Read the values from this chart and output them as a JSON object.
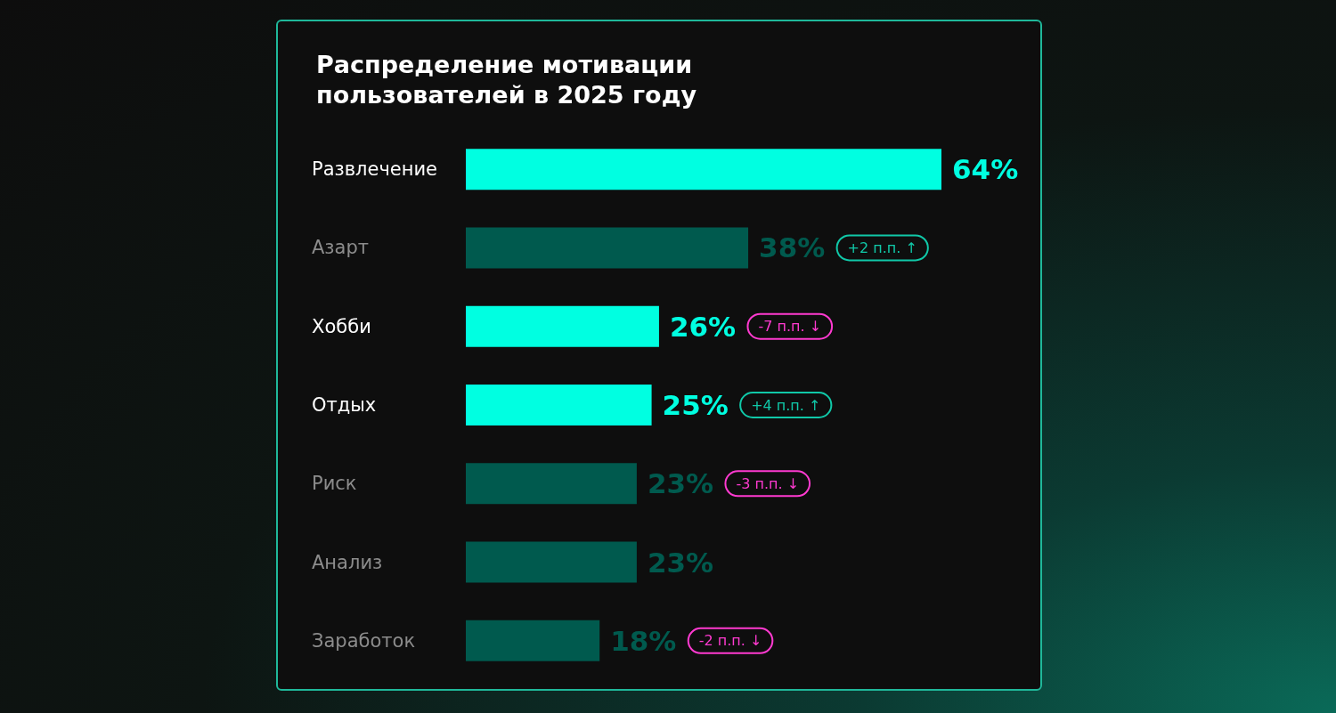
{
  "chart_data": {
    "type": "bar",
    "orientation": "horizontal",
    "title": "Распределение мотивации пользователей в 2025 году",
    "categories": [
      "Развлечение",
      "Азарт",
      "Хобби",
      "Отдых",
      "Риск",
      "Анализ",
      "Заработок"
    ],
    "values": [
      64,
      38,
      26,
      25,
      23,
      23,
      18
    ],
    "colors": [
      "#00ffe1",
      "#005a4e",
      "#00ffe1",
      "#00ffe1",
      "#005a4e",
      "#005a4e",
      "#005a4e"
    ],
    "value_labels": [
      "64%",
      "38%",
      "26%",
      "25%",
      "23%",
      "23%",
      "18%"
    ],
    "annotations": [
      null,
      "+2 п.п. ↑",
      "-7 п.п. ↓",
      "+4 п.п. ↑",
      "-3 п.п. ↓",
      null,
      "-2 п.п. ↓"
    ],
    "grid": false
  }
}
